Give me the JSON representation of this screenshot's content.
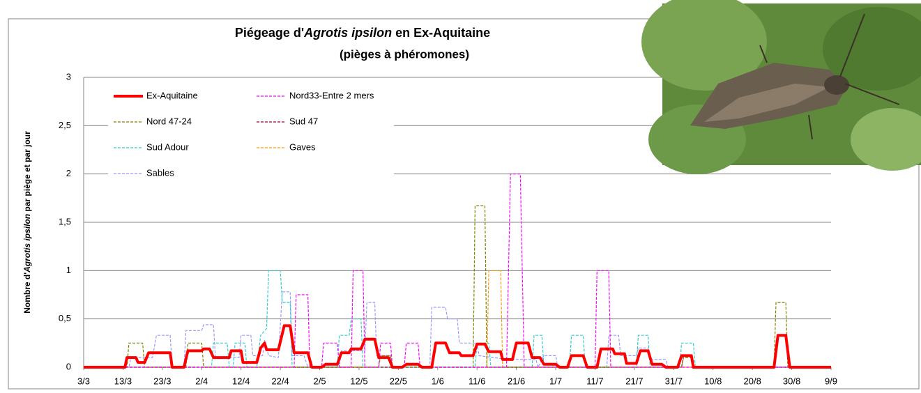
{
  "chart_data": {
    "type": "line",
    "title_parts": [
      "Piégeage d'",
      "Agrotis ipsilon",
      " en Ex-Aquitaine"
    ],
    "subtitle": "(pièges à phéromones)",
    "y_label_parts": [
      "Nombre d'",
      "Agrotis ipsilon",
      " par piège et par jour"
    ],
    "xlim": [
      0,
      190
    ],
    "xticks": [
      {
        "value": 0,
        "label": "3/3"
      },
      {
        "value": 10,
        "label": "13/3"
      },
      {
        "value": 20,
        "label": "23/3"
      },
      {
        "value": 30,
        "label": "2/4"
      },
      {
        "value": 40,
        "label": "12/4"
      },
      {
        "value": 50,
        "label": "22/4"
      },
      {
        "value": 60,
        "label": "2/5"
      },
      {
        "value": 70,
        "label": "12/5"
      },
      {
        "value": 80,
        "label": "22/5"
      },
      {
        "value": 90,
        "label": "1/6"
      },
      {
        "value": 100,
        "label": "11/6"
      },
      {
        "value": 110,
        "label": "21/6"
      },
      {
        "value": 120,
        "label": "1/7"
      },
      {
        "value": 130,
        "label": "11/7"
      },
      {
        "value": 140,
        "label": "21/7"
      },
      {
        "value": 150,
        "label": "31/7"
      },
      {
        "value": 160,
        "label": "10/8"
      },
      {
        "value": 170,
        "label": "20/8"
      },
      {
        "value": 180,
        "label": "30/8"
      },
      {
        "value": 190,
        "label": "9/9"
      }
    ],
    "ylim": [
      0,
      3
    ],
    "yticks": [
      0,
      {
        "value": 0.5,
        "label": "0,5"
      },
      1,
      {
        "value": 1.5,
        "label": "1,5"
      },
      2,
      {
        "value": 2.5,
        "label": "2,5"
      },
      3
    ],
    "grid": true,
    "legend": "upper-left",
    "series": [
      {
        "name": "Ex-Aquitaine",
        "color": "#ff0000",
        "x": [
          0,
          10.5,
          11,
          13.3,
          13.8,
          15.5,
          16.5,
          22,
          22.5,
          25.5,
          26.5,
          30,
          30.5,
          32,
          33,
          37,
          37.5,
          40,
          40.5,
          44,
          45,
          46,
          46.5,
          49.5,
          51,
          52.5,
          53.5,
          57,
          58,
          60.5,
          61.5,
          64.5,
          65.5,
          67.5,
          68,
          70.5,
          71.5,
          74,
          75,
          77.5,
          78.5,
          81,
          82,
          85,
          86,
          88.5,
          89.5,
          92,
          93,
          95.5,
          96,
          99,
          100,
          102,
          103,
          106,
          106.5,
          109,
          110,
          113,
          114,
          116,
          117,
          120,
          121,
          123,
          124,
          127,
          128,
          130.5,
          131.5,
          134.5,
          135,
          137.5,
          138,
          140.5,
          141.5,
          143.5,
          144.5,
          147,
          148,
          151,
          152,
          154.5,
          155,
          175.5,
          176.5,
          178.5,
          179.5,
          190
        ],
        "values": [
          0,
          0,
          0.1,
          0.1,
          0.05,
          0.05,
          0.15,
          0.15,
          0,
          0,
          0.17,
          0.17,
          0.19,
          0.19,
          0.1,
          0.1,
          0.17,
          0.17,
          0.05,
          0.05,
          0.2,
          0.25,
          0.18,
          0.18,
          0.43,
          0.43,
          0.15,
          0.15,
          0,
          0,
          0.03,
          0.03,
          0.15,
          0.15,
          0.19,
          0.19,
          0.29,
          0.29,
          0.1,
          0.1,
          0,
          0,
          0.03,
          0.03,
          0,
          0,
          0.25,
          0.25,
          0.15,
          0.15,
          0.12,
          0.12,
          0.24,
          0.24,
          0.16,
          0.16,
          0.08,
          0.08,
          0.25,
          0.25,
          0.1,
          0.1,
          0.03,
          0.03,
          0,
          0,
          0.12,
          0.12,
          0,
          0,
          0.19,
          0.19,
          0.14,
          0.14,
          0.04,
          0.04,
          0.17,
          0.17,
          0.03,
          0.03,
          0,
          0,
          0.12,
          0.12,
          0,
          0,
          0.33,
          0.33,
          0,
          0
        ]
      },
      {
        "name": "Nord33-Entre 2 mers",
        "color": "#ff00ff",
        "x": [
          0,
          53.5,
          54,
          57,
          57.5,
          60.5,
          61,
          64.5,
          65,
          68,
          68.5,
          71,
          71.5,
          75,
          75.5,
          78,
          78.5,
          81.5,
          82,
          85,
          85.5,
          107.5,
          108.5,
          111,
          112,
          130,
          130.5,
          133.5,
          134,
          190
        ],
        "values": [
          0,
          0,
          0.75,
          0.75,
          0,
          0,
          0.25,
          0.25,
          0,
          0,
          1,
          1,
          0,
          0,
          0.25,
          0.25,
          0,
          0,
          0.25,
          0.25,
          0,
          0,
          2,
          2,
          0,
          0,
          1,
          1,
          0,
          0
        ]
      },
      {
        "name": "Nord 47-24",
        "color": "#808000",
        "x": [
          0,
          11,
          11.5,
          15,
          15.5,
          26,
          26.5,
          30,
          30.5,
          75,
          75.5,
          78,
          78.5,
          99,
          99.5,
          102,
          102.5,
          152,
          152.5,
          154.5,
          155,
          175.5,
          176,
          178.5,
          179,
          190
        ],
        "values": [
          0,
          0,
          0.25,
          0.25,
          0,
          0,
          0.25,
          0.25,
          0,
          0,
          0.12,
          0.12,
          0,
          0,
          1.67,
          1.67,
          0,
          0,
          0.1,
          0.1,
          0,
          0,
          0.67,
          0.67,
          0,
          0
        ]
      },
      {
        "name": "Sud 47",
        "color": "#990033",
        "x": [
          0,
          152,
          152.5,
          154.5,
          155,
          190
        ],
        "values": [
          0,
          0,
          0.12,
          0.12,
          0,
          0
        ]
      },
      {
        "name": "Sud Adour",
        "color": "#33cccc",
        "x": [
          0,
          32.5,
          33,
          36.5,
          37,
          38,
          38.5,
          41,
          41.5,
          44,
          45,
          46.5,
          47,
          50,
          50.5,
          52.5,
          53,
          64.5,
          65,
          67.5,
          68,
          70.5,
          71,
          99.5,
          100,
          103,
          103.5,
          114,
          114.5,
          116.5,
          117,
          123.5,
          124,
          127,
          127.5,
          140.5,
          141,
          143.5,
          144,
          151.5,
          152,
          155,
          155.5,
          190
        ],
        "values": [
          0,
          0,
          0.25,
          0.25,
          0,
          0,
          0.25,
          0.25,
          0,
          0,
          0.33,
          0.4,
          1,
          1,
          0.67,
          0.67,
          0,
          0,
          0.33,
          0.33,
          0.5,
          0.5,
          0,
          0,
          0.25,
          0.25,
          0,
          0,
          0.33,
          0.33,
          0,
          0,
          0.33,
          0.33,
          0,
          0,
          0.33,
          0.33,
          0,
          0,
          0.25,
          0.25,
          0,
          0
        ]
      },
      {
        "name": "Gaves",
        "color": "#ff9900",
        "x": [
          0,
          102.5,
          103,
          106,
          106.5,
          190
        ],
        "values": [
          0,
          0,
          1,
          1,
          0,
          0
        ]
      },
      {
        "name": "Sables",
        "color": "#9999ff",
        "x": [
          0,
          11.5,
          12,
          17.5,
          18.5,
          22,
          22.5,
          25.5,
          26,
          30,
          30.5,
          33,
          33.5,
          39.5,
          40,
          42.5,
          43,
          45.5,
          46,
          47,
          49.5,
          50.5,
          52.5,
          53,
          56,
          57,
          65,
          65.5,
          71.5,
          72,
          74,
          74.5,
          78,
          78.5,
          88,
          88.5,
          92,
          92.5,
          95,
          95.5,
          100,
          100.5,
          108,
          115,
          115.5,
          117,
          120,
          120.5,
          133,
          133.5,
          136,
          136.5,
          140.5,
          141,
          143.5,
          144,
          148,
          148.5,
          190
        ],
        "values": [
          0,
          0,
          0.1,
          0.1,
          0.33,
          0.33,
          0,
          0,
          0.38,
          0.38,
          0.44,
          0.44,
          0.1,
          0.1,
          0.33,
          0.33,
          0.12,
          0.12,
          0.28,
          0.12,
          0.1,
          0.78,
          0.78,
          0.12,
          0.12,
          0,
          0,
          0.17,
          0.17,
          0.67,
          0.67,
          0.12,
          0.12,
          0,
          0,
          0.62,
          0.62,
          0.5,
          0.5,
          0.25,
          0.25,
          0.12,
          0.08,
          0.08,
          0,
          0.12,
          0.12,
          0,
          0,
          0.33,
          0.33,
          0.12,
          0.12,
          0.2,
          0.2,
          0.08,
          0.08,
          0,
          0
        ]
      }
    ]
  }
}
